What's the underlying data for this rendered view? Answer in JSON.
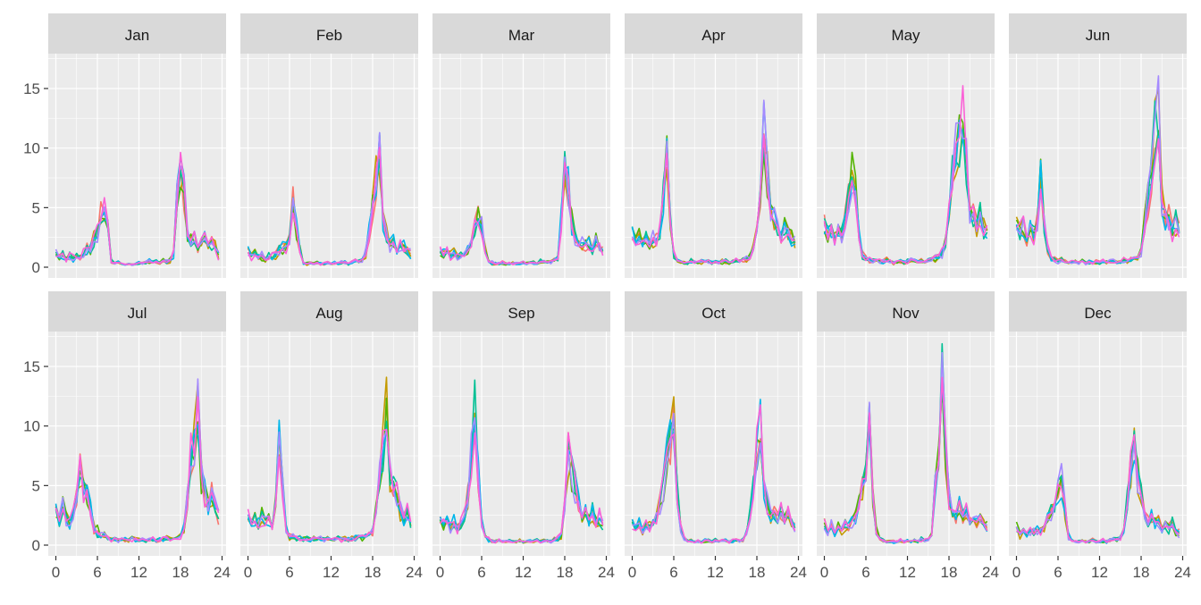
{
  "chart_data": {
    "type": "line",
    "layout": "facet grid, 2 rows x 6 columns",
    "x_ticks": [
      0,
      6,
      12,
      18,
      24
    ],
    "y_ticks": [
      0,
      5,
      10,
      15
    ],
    "xlim": [
      0,
      24
    ],
    "ylim": [
      0,
      17
    ],
    "grid": true,
    "legend": "none",
    "x_step_hours": 0.5,
    "series_colors": [
      "#F8766D",
      "#C49A00",
      "#53B400",
      "#00C094",
      "#00B6EB",
      "#A58AFF",
      "#FB61D7"
    ],
    "panels": [
      {
        "label": "Jan",
        "values": [
          1.2,
          0.8,
          1.1,
          0.7,
          1.0,
          0.8,
          0.9,
          0.7,
          1.1,
          1.6,
          1.5,
          2.5,
          3.0,
          4.5,
          4.8,
          3.5,
          0.5,
          0.3,
          0.4,
          0.3,
          0.2,
          0.3,
          0.2,
          0.3,
          0.4,
          0.3,
          0.4,
          0.5,
          0.4,
          0.5,
          0.4,
          0.6,
          0.5,
          0.6,
          1.2,
          6.5,
          8.0,
          6.5,
          3.0,
          2.5,
          2.8,
          1.5,
          2.0,
          2.8,
          1.8,
          2.2,
          2.0,
          1.0
        ]
      },
      {
        "label": "Feb",
        "values": [
          1.5,
          1.0,
          1.2,
          0.9,
          1.0,
          0.8,
          1.1,
          0.9,
          1.2,
          1.4,
          1.6,
          1.8,
          2.5,
          6.0,
          3.5,
          1.5,
          0.4,
          0.3,
          0.3,
          0.3,
          0.4,
          0.3,
          0.3,
          0.4,
          0.3,
          0.4,
          0.3,
          0.4,
          0.4,
          0.3,
          0.4,
          0.5,
          0.5,
          0.6,
          1.2,
          3.0,
          5.0,
          8.0,
          9.5,
          4.0,
          3.0,
          2.0,
          2.5,
          1.5,
          2.0,
          1.8,
          1.5,
          1.2
        ]
      },
      {
        "label": "Mar",
        "values": [
          1.5,
          1.2,
          1.4,
          1.0,
          1.2,
          0.9,
          1.1,
          1.0,
          1.4,
          2.0,
          3.5,
          4.5,
          3.5,
          1.5,
          0.5,
          0.4,
          0.3,
          0.3,
          0.4,
          0.3,
          0.3,
          0.4,
          0.3,
          0.3,
          0.4,
          0.3,
          0.4,
          0.4,
          0.3,
          0.5,
          0.4,
          0.5,
          0.5,
          0.6,
          0.8,
          4.0,
          8.0,
          7.0,
          4.0,
          2.5,
          2.0,
          2.2,
          1.8,
          2.0,
          1.5,
          2.2,
          1.8,
          1.5
        ]
      },
      {
        "label": "Apr",
        "values": [
          3.0,
          2.2,
          2.8,
          2.0,
          2.5,
          1.8,
          2.5,
          2.2,
          3.0,
          6.0,
          10.5,
          4.0,
          1.0,
          0.6,
          0.5,
          0.4,
          0.4,
          0.5,
          0.4,
          0.4,
          0.5,
          0.4,
          0.5,
          0.4,
          0.5,
          0.4,
          0.5,
          0.5,
          0.4,
          0.5,
          0.6,
          0.5,
          0.6,
          0.7,
          0.8,
          1.5,
          3.5,
          7.0,
          12.0,
          8.0,
          5.0,
          4.0,
          3.5,
          2.5,
          3.5,
          3.0,
          2.5,
          2.0
        ]
      },
      {
        "label": "May",
        "values": [
          3.8,
          2.8,
          3.2,
          2.5,
          3.0,
          2.8,
          4.0,
          6.0,
          8.0,
          6.5,
          3.0,
          1.0,
          0.7,
          0.6,
          0.5,
          0.6,
          0.5,
          0.5,
          0.6,
          0.5,
          0.4,
          0.5,
          0.5,
          0.4,
          0.5,
          0.6,
          0.5,
          0.5,
          0.6,
          0.5,
          0.6,
          0.7,
          0.8,
          0.9,
          1.2,
          2.5,
          5.0,
          8.0,
          10.0,
          11.5,
          14.0,
          9.0,
          5.0,
          4.5,
          3.5,
          4.8,
          3.5,
          2.8
        ]
      },
      {
        "label": "Jun",
        "values": [
          3.5,
          3.0,
          3.5,
          2.5,
          3.5,
          2.8,
          4.0,
          7.5,
          3.5,
          1.5,
          0.8,
          0.7,
          0.5,
          0.6,
          0.5,
          0.4,
          0.5,
          0.5,
          0.4,
          0.5,
          0.4,
          0.5,
          0.4,
          0.5,
          0.4,
          0.5,
          0.4,
          0.5,
          0.5,
          0.4,
          0.5,
          0.6,
          0.5,
          0.6,
          0.7,
          0.8,
          1.5,
          4.0,
          6.0,
          8.0,
          12.0,
          14.0,
          6.0,
          4.0,
          4.5,
          3.0,
          3.8,
          3.2
        ]
      },
      {
        "label": "Jul",
        "values": [
          3.0,
          2.0,
          3.5,
          2.5,
          2.0,
          3.0,
          4.0,
          6.5,
          5.0,
          4.5,
          3.0,
          1.5,
          1.2,
          0.8,
          0.9,
          0.6,
          0.5,
          0.6,
          0.4,
          0.5,
          0.5,
          0.4,
          0.6,
          0.5,
          0.4,
          0.5,
          0.4,
          0.5,
          0.5,
          0.4,
          0.5,
          0.5,
          0.6,
          0.5,
          0.6,
          0.7,
          0.8,
          1.5,
          4.0,
          8.0,
          9.0,
          12.0,
          6.0,
          4.5,
          3.5,
          4.5,
          3.5,
          2.5
        ]
      },
      {
        "label": "Aug",
        "values": [
          2.5,
          2.0,
          2.2,
          1.8,
          2.5,
          2.0,
          2.2,
          1.8,
          3.5,
          9.5,
          5.0,
          1.5,
          0.8,
          0.7,
          0.6,
          0.6,
          0.5,
          0.6,
          0.5,
          0.6,
          0.5,
          0.6,
          0.5,
          0.6,
          0.5,
          0.5,
          0.6,
          0.5,
          0.6,
          0.5,
          0.6,
          0.6,
          0.7,
          0.6,
          0.7,
          0.8,
          1.2,
          3.0,
          6.0,
          8.5,
          12.0,
          6.0,
          5.0,
          4.5,
          3.0,
          2.0,
          3.0,
          1.8
        ]
      },
      {
        "label": "Sep",
        "values": [
          2.2,
          1.8,
          2.0,
          1.5,
          2.2,
          1.5,
          2.0,
          2.5,
          4.0,
          8.0,
          12.5,
          6.0,
          2.0,
          0.8,
          0.5,
          0.4,
          0.3,
          0.4,
          0.3,
          0.3,
          0.4,
          0.3,
          0.3,
          0.4,
          0.3,
          0.3,
          0.4,
          0.3,
          0.4,
          0.3,
          0.4,
          0.4,
          0.3,
          0.5,
          0.6,
          0.8,
          3.5,
          8.0,
          6.0,
          5.0,
          3.5,
          2.5,
          3.0,
          2.2,
          2.8,
          2.0,
          2.5,
          1.8
        ]
      },
      {
        "label": "Oct",
        "values": [
          2.0,
          1.5,
          1.8,
          1.2,
          1.8,
          1.5,
          2.0,
          2.5,
          3.5,
          5.0,
          7.5,
          9.0,
          11.0,
          5.0,
          1.5,
          0.6,
          0.4,
          0.4,
          0.3,
          0.4,
          0.3,
          0.4,
          0.4,
          0.3,
          0.4,
          0.3,
          0.4,
          0.4,
          0.3,
          0.4,
          0.5,
          0.4,
          0.5,
          1.0,
          2.5,
          5.0,
          8.0,
          10.5,
          5.0,
          3.5,
          2.5,
          3.0,
          2.2,
          3.0,
          2.0,
          2.8,
          2.0,
          1.5
        ]
      },
      {
        "label": "Nov",
        "values": [
          2.0,
          1.2,
          1.8,
          1.0,
          1.5,
          1.2,
          1.8,
          1.5,
          2.0,
          2.5,
          3.5,
          5.0,
          6.5,
          10.0,
          4.5,
          1.2,
          0.6,
          0.4,
          0.3,
          0.4,
          0.3,
          0.3,
          0.4,
          0.3,
          0.4,
          0.3,
          0.4,
          0.3,
          0.5,
          0.4,
          0.5,
          0.8,
          5.0,
          8.0,
          14.0,
          8.0,
          4.0,
          3.0,
          2.5,
          3.5,
          2.5,
          3.0,
          2.2,
          2.8,
          2.0,
          2.5,
          2.0,
          1.5
        ]
      },
      {
        "label": "Dec",
        "values": [
          1.5,
          1.0,
          1.3,
          0.9,
          1.2,
          1.0,
          1.3,
          1.2,
          1.6,
          2.2,
          2.8,
          3.5,
          4.5,
          5.5,
          3.0,
          0.8,
          0.4,
          0.3,
          0.3,
          0.4,
          0.3,
          0.3,
          0.4,
          0.3,
          0.3,
          0.4,
          0.3,
          0.4,
          0.5,
          0.5,
          0.6,
          1.2,
          4.0,
          6.5,
          9.0,
          6.0,
          4.5,
          2.5,
          2.0,
          2.5,
          1.8,
          2.2,
          1.5,
          2.0,
          1.5,
          1.8,
          1.2,
          1.0
        ]
      }
    ]
  }
}
